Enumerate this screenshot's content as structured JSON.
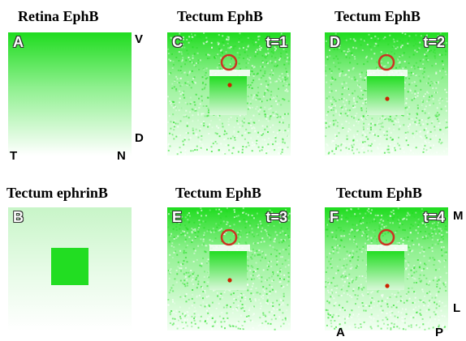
{
  "titles": {
    "retina_ephb": "Retina EphB",
    "tectum_ephb_c": "Tectum EphB",
    "tectum_ephb_d": "Tectum EphB",
    "tectum_ephrinb": "Tectum ephrinB",
    "tectum_ephb_e": "Tectum EphB",
    "tectum_ephb_f": "Tectum EphB"
  },
  "panels": {
    "A": {
      "label": "A"
    },
    "B": {
      "label": "B"
    },
    "C": {
      "label": "C",
      "time": "t=1"
    },
    "D": {
      "label": "D",
      "time": "t=2"
    },
    "E": {
      "label": "E",
      "time": "t=3"
    },
    "F": {
      "label": "F",
      "time": "t=4"
    }
  },
  "axes": {
    "retina": {
      "top": "V",
      "bottom": "D",
      "left": "T",
      "right": "N"
    },
    "tectum": {
      "top": "M",
      "bottom": "L",
      "left": "A",
      "right": "P"
    }
  },
  "colors": {
    "green": "#22dd22",
    "ring": "#cc3322",
    "dot": "#cc2200"
  }
}
